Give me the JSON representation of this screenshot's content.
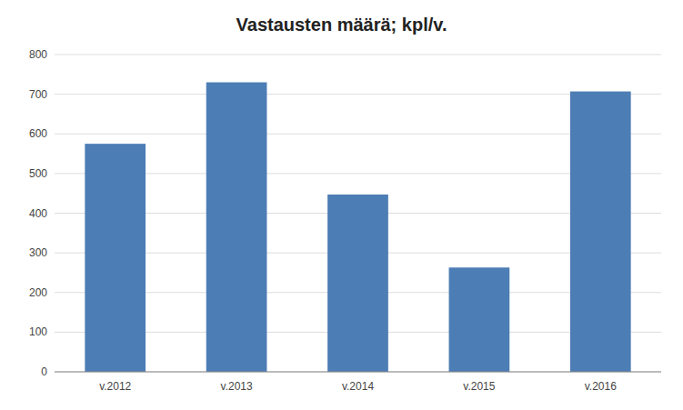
{
  "chart_data": {
    "type": "bar",
    "title": "Vastausten määrä; kpl/v.",
    "categories": [
      "v.2012",
      "v.2013",
      "v.2014",
      "v.2015",
      "v.2016"
    ],
    "values": [
      575,
      730,
      447,
      263,
      707
    ],
    "color": "#4d7db5",
    "ylim": [
      0,
      800
    ],
    "yticks": [
      0,
      100,
      200,
      300,
      400,
      500,
      600,
      700,
      800
    ],
    "grid": true
  }
}
